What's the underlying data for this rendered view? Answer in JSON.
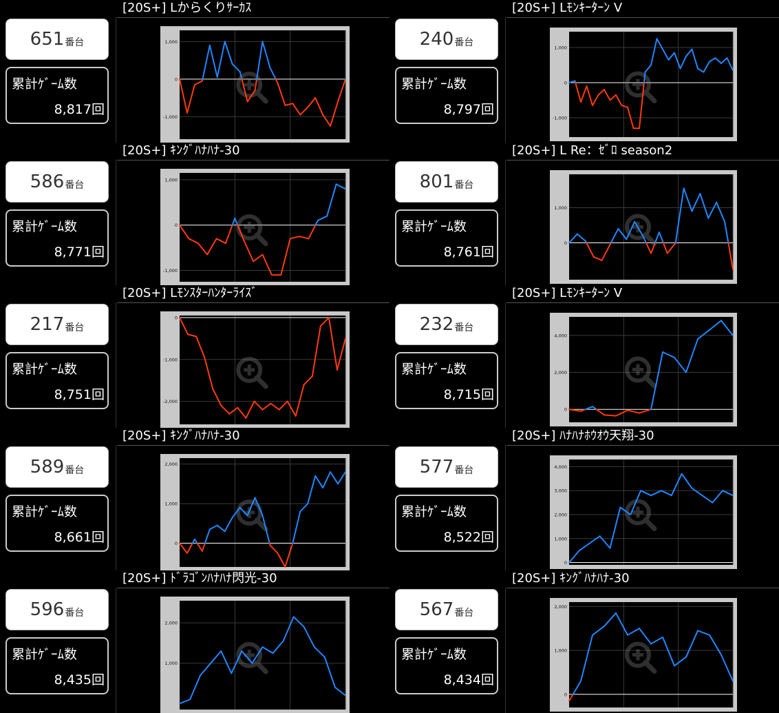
{
  "cards": [
    {
      "title": "[20S+] Lからくりｻｰｶｽ",
      "machine": "651",
      "suffix": "番台",
      "games_label": "累計ｹﾞｰﾑ数",
      "games": "8,817回"
    },
    {
      "title": "[20S+] Lﾓﾝｷｰﾀｰﾝ V",
      "machine": "240",
      "suffix": "番台",
      "games_label": "累計ｹﾞｰﾑ数",
      "games": "8,797回"
    },
    {
      "title": "[20S+] ｷﾝｸﾞﾊﾅﾊﾅ-30",
      "machine": "586",
      "suffix": "番台",
      "games_label": "累計ｹﾞｰﾑ数",
      "games": "8,771回"
    },
    {
      "title": "[20S+] L Re：ｾﾞﾛ season2",
      "machine": "801",
      "suffix": "番台",
      "games_label": "累計ｹﾞｰﾑ数",
      "games": "8,761回"
    },
    {
      "title": "[20S+] Lﾓﾝｽﾀｰﾊﾝﾀｰﾗｲｽﾞ",
      "machine": "217",
      "suffix": "番台",
      "games_label": "累計ｹﾞｰﾑ数",
      "games": "8,751回"
    },
    {
      "title": "[20S+] Lﾓﾝｷｰﾀｰﾝ V",
      "machine": "232",
      "suffix": "番台",
      "games_label": "累計ｹﾞｰﾑ数",
      "games": "8,715回"
    },
    {
      "title": "[20S+] ｷﾝｸﾞﾊﾅﾊﾅ-30",
      "machine": "589",
      "suffix": "番台",
      "games_label": "累計ｹﾞｰﾑ数",
      "games": "8,661回"
    },
    {
      "title": "[20S+] ﾊﾅﾊﾅﾎｳｵｳ天翔-30",
      "machine": "577",
      "suffix": "番台",
      "games_label": "累計ｹﾞｰﾑ数",
      "games": "8,522回"
    },
    {
      "title": "[20S+] ﾄﾞﾗｺﾞﾝﾊﾅﾊﾅ閃光-30",
      "machine": "596",
      "suffix": "番台",
      "games_label": "累計ｹﾞｰﾑ数",
      "games": "8,435回"
    },
    {
      "title": "[20S+] ｷﾝｸﾞﾊﾅﾊﾅ-30",
      "machine": "567",
      "suffix": "番台",
      "games_label": "累計ｹﾞｰﾑ数",
      "games": "8,434回"
    }
  ],
  "colors": {
    "positive": "#1e88ff",
    "negative": "#ff3a0a",
    "frame": "#c8c8c8",
    "plot_bg": "#000000",
    "zero_line": "#ffffff",
    "grid": "#3a3a3a"
  },
  "icons": {
    "watermark": "zoom-in-icon"
  },
  "chart_data": [
    {
      "type": "line",
      "ylim": [
        -1600,
        1300
      ],
      "yticks": [
        1000,
        0,
        -1000
      ],
      "tick_labels": [
        "1,000",
        "0",
        "-1,000"
      ],
      "y": [
        0,
        -900,
        -150,
        -50,
        900,
        50,
        1000,
        400,
        200,
        -600,
        -300,
        1000,
        300,
        -100,
        -700,
        -650,
        -950,
        -750,
        -500,
        -950,
        -1250,
        -600,
        0
      ]
    },
    {
      "type": "line",
      "ylim": [
        -1550,
        1450
      ],
      "yticks": [
        1000,
        0,
        -1000
      ],
      "tick_labels": [
        "1,000",
        "0",
        "-1,000"
      ],
      "y": [
        0,
        50,
        -550,
        -100,
        -650,
        -350,
        -200,
        -500,
        -350,
        -650,
        -700,
        -1300,
        -1300,
        300,
        500,
        1250,
        950,
        650,
        850,
        400,
        750,
        950,
        400,
        300,
        600,
        700,
        550,
        700,
        350
      ]
    },
    {
      "type": "line",
      "ylim": [
        -1250,
        1150
      ],
      "yticks": [
        1000,
        0,
        -1000
      ],
      "tick_labels": [
        "1,000",
        "0",
        "-1,000"
      ],
      "y": [
        0,
        -300,
        -400,
        -650,
        -300,
        -400,
        150,
        -350,
        -800,
        -650,
        -1100,
        -1100,
        -300,
        -250,
        -300,
        100,
        200,
        900,
        800
      ]
    },
    {
      "type": "line",
      "ylim": [
        -1050,
        1950
      ],
      "yticks": [
        1000,
        0
      ],
      "tick_labels": [
        "1,000",
        "0"
      ],
      "y": [
        0,
        250,
        50,
        -400,
        -500,
        -50,
        400,
        100,
        600,
        200,
        -300,
        300,
        -300,
        0,
        1550,
        900,
        1400,
        700,
        1150,
        600,
        -750
      ]
    },
    {
      "type": "line",
      "ylim": [
        -2550,
        50
      ],
      "yticks": [
        0,
        -1000,
        -2000
      ],
      "tick_labels": [
        "0",
        "-1,000",
        "-2,000"
      ],
      "y": [
        0,
        -400,
        -450,
        -950,
        -1700,
        -2100,
        -2300,
        -2150,
        -2400,
        -2000,
        -2200,
        -2050,
        -2200,
        -2000,
        -2350,
        -1600,
        -1400,
        -200,
        0,
        -1250,
        -500
      ]
    },
    {
      "type": "line",
      "ylim": [
        -700,
        5000
      ],
      "yticks": [
        4000,
        2000,
        0
      ],
      "tick_labels": [
        "4,000",
        "2,000",
        "0"
      ],
      "y": [
        0,
        -100,
        150,
        -300,
        -350,
        -50,
        -200,
        0,
        3100,
        2800,
        2000,
        3800,
        4300,
        4800,
        4000
      ]
    },
    {
      "type": "line",
      "ylim": [
        -600,
        2150
      ],
      "yticks": [
        2000,
        1000,
        0
      ],
      "tick_labels": [
        "2,000",
        "1,000",
        "0"
      ],
      "y": [
        0,
        -250,
        100,
        -200,
        350,
        450,
        300,
        650,
        900,
        700,
        1150,
        700,
        -50,
        -250,
        -600,
        0,
        800,
        1000,
        1700,
        1400,
        1800,
        1500,
        1800
      ]
    },
    {
      "type": "line",
      "ylim": [
        -100,
        4300
      ],
      "yticks": [
        4000,
        3000,
        2000,
        1000,
        0
      ],
      "tick_labels": [
        "4,000",
        "3,000",
        "2,000",
        "1,000",
        "0"
      ],
      "y": [
        0,
        500,
        800,
        1100,
        600,
        2300,
        2000,
        3000,
        2800,
        3000,
        2800,
        3700,
        3100,
        2800,
        2500,
        3000,
        2800
      ]
    },
    {
      "type": "line",
      "ylim": [
        -150,
        2550
      ],
      "yticks": [
        2000,
        1000
      ],
      "tick_labels": [
        "2,000",
        "1,000"
      ],
      "y": [
        0,
        100,
        700,
        1000,
        1300,
        750,
        1300,
        1000,
        1400,
        1250,
        1550,
        2150,
        1900,
        1400,
        1150,
        400,
        200
      ]
    },
    {
      "type": "line",
      "ylim": [
        -300,
        2100
      ],
      "yticks": [
        2000,
        1000,
        0
      ],
      "tick_labels": [
        "2,000",
        "1,000",
        "0"
      ],
      "y": [
        -150,
        300,
        1350,
        1550,
        1850,
        1350,
        1500,
        1150,
        1300,
        650,
        850,
        1450,
        1350,
        900,
        300
      ]
    }
  ]
}
